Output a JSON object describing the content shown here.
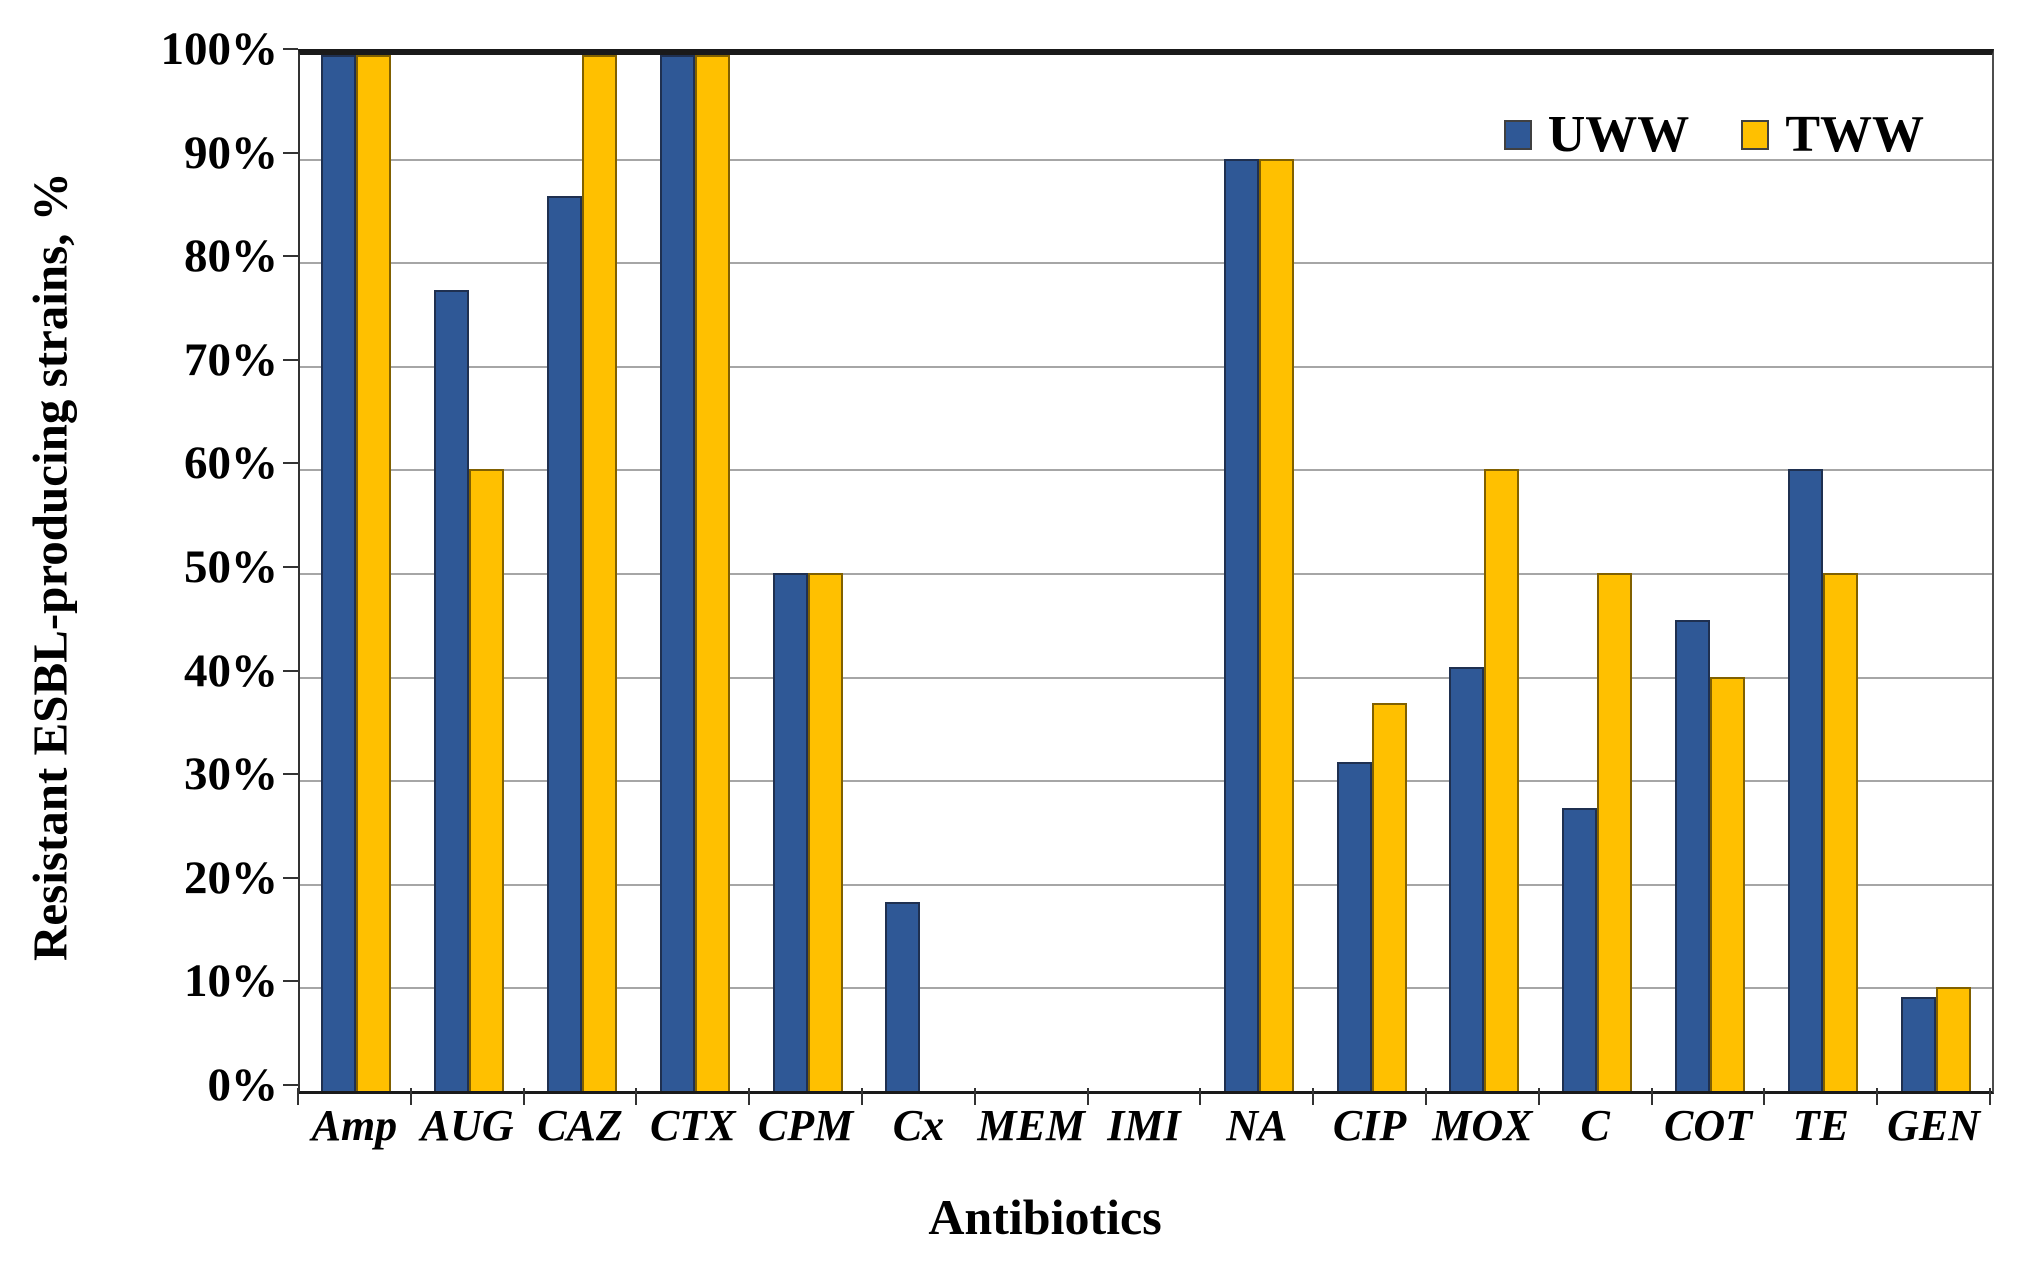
{
  "chart_data": {
    "type": "bar",
    "title": "",
    "xlabel": "Antibiotics",
    "ylabel": "Resistant ESBL-producing strains, %",
    "categories": [
      "Amp",
      "AUG",
      "CAZ",
      "CTX",
      "CPM",
      "Cx",
      "MEM",
      "IMI",
      "NA",
      "CIP",
      "MOX",
      "C",
      "COT",
      "TE",
      "GEN"
    ],
    "series": [
      {
        "name": "UWW",
        "color": "#2F5896",
        "border_color": "#1f3050",
        "values": [
          100,
          77.3,
          86.4,
          100,
          50,
          18.2,
          0,
          0,
          90,
          31.8,
          40.9,
          27.3,
          45.5,
          60,
          9.1
        ]
      },
      {
        "name": "TWW",
        "color": "#FFC000",
        "border_color": "#806000",
        "values": [
          100,
          60,
          100,
          100,
          50,
          0,
          0,
          0,
          90,
          37.5,
          60,
          50,
          40,
          50,
          10
        ]
      }
    ],
    "y_tick_labels": [
      "100%",
      "90%",
      "80%",
      "70%",
      "60%",
      "50%",
      "40%",
      "30%",
      "20%",
      "10%",
      "0%"
    ],
    "y_tick_values": [
      100,
      90,
      80,
      70,
      60,
      50,
      40,
      30,
      20,
      10,
      0
    ],
    "ylim": [
      0,
      100
    ],
    "grid": "horizontal",
    "gridline_color": "#a6a6a6",
    "legend_position": "top-right-inside"
  }
}
